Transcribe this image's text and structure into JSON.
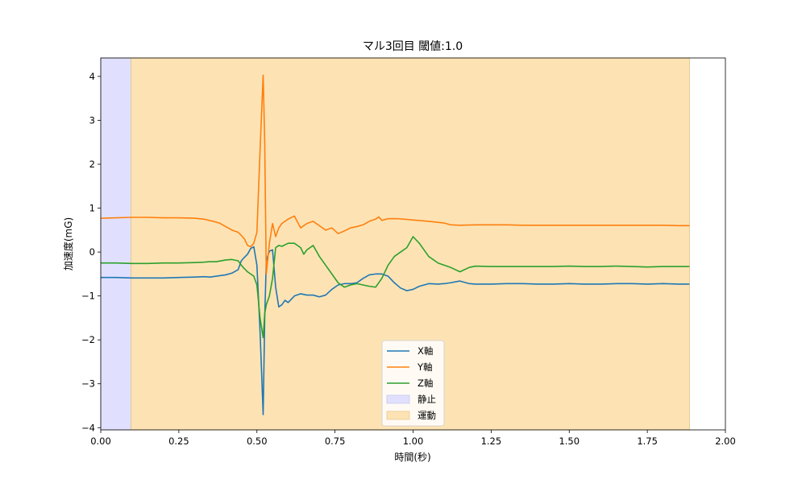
{
  "chart_data": {
    "type": "line",
    "title": "マル3回目 閾値:1.0",
    "xlabel": "時間(秒)",
    "ylabel": "加速度(mG)",
    "xlim": [
      0.0,
      2.0
    ],
    "ylim": [
      -4.05,
      4.42
    ],
    "xticks": [
      0.0,
      0.25,
      0.5,
      0.75,
      1.0,
      1.25,
      1.5,
      1.75,
      2.0
    ],
    "xtick_labels": [
      "0.00",
      "0.25",
      "0.50",
      "0.75",
      "1.00",
      "1.25",
      "1.50",
      "1.75",
      "2.00"
    ],
    "yticks": [
      -4,
      -3,
      -2,
      -1,
      0,
      1,
      2,
      3,
      4
    ],
    "ytick_labels": [
      "−4",
      "−3",
      "−2",
      "−1",
      "0",
      "1",
      "2",
      "3",
      "4"
    ],
    "grid": false,
    "legend_position": "lower-center",
    "spans": [
      {
        "name": "静止",
        "x0": 0.0,
        "x1": 0.097,
        "color": "#e0e0fe",
        "edge": "#c6c6ef"
      },
      {
        "name": "運動",
        "x0": 0.097,
        "x1": 1.885,
        "color": "#fde3b4",
        "edge": "#e9c890"
      }
    ],
    "series": [
      {
        "name": "X軸",
        "color": "#1f77b4",
        "x": [
          0.0,
          0.05,
          0.1,
          0.15,
          0.2,
          0.25,
          0.3,
          0.33,
          0.35,
          0.37,
          0.4,
          0.42,
          0.44,
          0.45,
          0.46,
          0.47,
          0.48,
          0.49,
          0.5,
          0.51,
          0.52,
          0.525,
          0.53,
          0.54,
          0.55,
          0.56,
          0.57,
          0.58,
          0.59,
          0.6,
          0.62,
          0.64,
          0.66,
          0.68,
          0.7,
          0.72,
          0.74,
          0.76,
          0.78,
          0.8,
          0.82,
          0.84,
          0.86,
          0.88,
          0.9,
          0.92,
          0.94,
          0.96,
          0.98,
          1.0,
          1.02,
          1.05,
          1.08,
          1.1,
          1.12,
          1.15,
          1.18,
          1.2,
          1.25,
          1.3,
          1.35,
          1.4,
          1.45,
          1.5,
          1.55,
          1.6,
          1.65,
          1.7,
          1.75,
          1.8,
          1.85,
          1.885
        ],
        "values": [
          -0.58,
          -0.58,
          -0.59,
          -0.59,
          -0.59,
          -0.58,
          -0.57,
          -0.56,
          -0.57,
          -0.55,
          -0.52,
          -0.48,
          -0.4,
          -0.2,
          -0.12,
          -0.05,
          0.08,
          0.12,
          -0.3,
          -1.8,
          -3.7,
          -1.5,
          -0.2,
          0.02,
          0.05,
          -0.8,
          -1.25,
          -1.2,
          -1.1,
          -1.15,
          -1.0,
          -0.95,
          -0.98,
          -0.98,
          -1.02,
          -0.98,
          -0.85,
          -0.75,
          -0.72,
          -0.72,
          -0.7,
          -0.6,
          -0.52,
          -0.5,
          -0.5,
          -0.55,
          -0.7,
          -0.82,
          -0.88,
          -0.85,
          -0.78,
          -0.72,
          -0.73,
          -0.72,
          -0.7,
          -0.66,
          -0.72,
          -0.73,
          -0.73,
          -0.72,
          -0.72,
          -0.73,
          -0.73,
          -0.72,
          -0.73,
          -0.73,
          -0.72,
          -0.72,
          -0.73,
          -0.72,
          -0.73,
          -0.73
        ]
      },
      {
        "name": "Y軸",
        "color": "#ff7f0e",
        "x": [
          0.0,
          0.05,
          0.1,
          0.15,
          0.2,
          0.25,
          0.3,
          0.33,
          0.36,
          0.38,
          0.4,
          0.42,
          0.44,
          0.45,
          0.46,
          0.47,
          0.48,
          0.49,
          0.5,
          0.51,
          0.52,
          0.525,
          0.53,
          0.54,
          0.55,
          0.56,
          0.57,
          0.58,
          0.6,
          0.62,
          0.64,
          0.66,
          0.68,
          0.7,
          0.72,
          0.74,
          0.76,
          0.78,
          0.8,
          0.82,
          0.84,
          0.86,
          0.88,
          0.89,
          0.9,
          0.92,
          0.95,
          1.0,
          1.05,
          1.1,
          1.12,
          1.15,
          1.2,
          1.25,
          1.3,
          1.35,
          1.4,
          1.45,
          1.5,
          1.55,
          1.6,
          1.65,
          1.7,
          1.75,
          1.8,
          1.85,
          1.885
        ],
        "values": [
          0.77,
          0.78,
          0.79,
          0.79,
          0.78,
          0.78,
          0.77,
          0.75,
          0.7,
          0.66,
          0.58,
          0.5,
          0.45,
          0.38,
          0.3,
          0.15,
          0.12,
          0.2,
          0.45,
          2.3,
          4.03,
          2.5,
          -0.5,
          0.2,
          0.65,
          0.35,
          0.55,
          0.65,
          0.75,
          0.82,
          0.55,
          0.65,
          0.7,
          0.6,
          0.5,
          0.55,
          0.42,
          0.48,
          0.55,
          0.58,
          0.62,
          0.7,
          0.75,
          0.8,
          0.72,
          0.76,
          0.76,
          0.73,
          0.7,
          0.66,
          0.62,
          0.61,
          0.62,
          0.62,
          0.62,
          0.61,
          0.61,
          0.61,
          0.61,
          0.61,
          0.61,
          0.61,
          0.61,
          0.61,
          0.61,
          0.6,
          0.6
        ]
      },
      {
        "name": "Z軸",
        "color": "#2ca02c",
        "x": [
          0.0,
          0.05,
          0.1,
          0.15,
          0.2,
          0.25,
          0.3,
          0.33,
          0.35,
          0.37,
          0.4,
          0.42,
          0.44,
          0.45,
          0.46,
          0.47,
          0.48,
          0.49,
          0.5,
          0.51,
          0.52,
          0.525,
          0.53,
          0.54,
          0.55,
          0.56,
          0.57,
          0.58,
          0.6,
          0.62,
          0.64,
          0.65,
          0.66,
          0.68,
          0.7,
          0.72,
          0.74,
          0.76,
          0.78,
          0.8,
          0.82,
          0.84,
          0.86,
          0.88,
          0.9,
          0.92,
          0.94,
          0.96,
          0.98,
          1.0,
          1.02,
          1.05,
          1.08,
          1.1,
          1.12,
          1.15,
          1.18,
          1.2,
          1.25,
          1.3,
          1.35,
          1.4,
          1.45,
          1.5,
          1.55,
          1.6,
          1.65,
          1.7,
          1.75,
          1.8,
          1.85,
          1.885
        ],
        "values": [
          -0.25,
          -0.25,
          -0.26,
          -0.26,
          -0.25,
          -0.25,
          -0.24,
          -0.23,
          -0.22,
          -0.22,
          -0.18,
          -0.17,
          -0.2,
          -0.3,
          -0.38,
          -0.45,
          -0.5,
          -0.55,
          -0.75,
          -1.5,
          -1.95,
          -1.4,
          -1.2,
          -1.0,
          -0.6,
          0.1,
          0.15,
          0.13,
          0.2,
          0.2,
          0.1,
          -0.05,
          0.05,
          0.15,
          -0.1,
          -0.3,
          -0.5,
          -0.7,
          -0.8,
          -0.75,
          -0.72,
          -0.75,
          -0.78,
          -0.8,
          -0.6,
          -0.3,
          -0.1,
          0.0,
          0.1,
          0.35,
          0.2,
          -0.1,
          -0.25,
          -0.3,
          -0.35,
          -0.45,
          -0.35,
          -0.32,
          -0.33,
          -0.33,
          -0.33,
          -0.33,
          -0.33,
          -0.32,
          -0.33,
          -0.33,
          -0.32,
          -0.33,
          -0.34,
          -0.33,
          -0.33,
          -0.33
        ]
      }
    ]
  }
}
